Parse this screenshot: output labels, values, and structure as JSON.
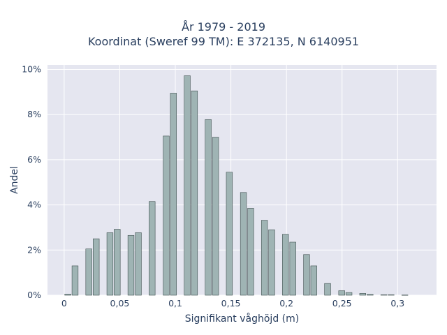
{
  "chart_data": {
    "type": "bar",
    "title_lines": [
      "År 1979 - 2019",
      "Koordinat (Sweref 99 TM): E 372135, N 6140951"
    ],
    "xlabel": "Signifikant våghöjd (m)",
    "ylabel": "Andel",
    "xlim": [
      -0.015,
      0.335
    ],
    "ylim": [
      0,
      10.2
    ],
    "x_ticks": [
      {
        "value": 0,
        "label": "0"
      },
      {
        "value": 0.05,
        "label": "0,05"
      },
      {
        "value": 0.1,
        "label": "0,1"
      },
      {
        "value": 0.15,
        "label": "0,15"
      },
      {
        "value": 0.2,
        "label": "0,2"
      },
      {
        "value": 0.25,
        "label": "0,25"
      },
      {
        "value": 0.3,
        "label": "0,3"
      }
    ],
    "y_ticks": [
      {
        "value": 0,
        "label": "0%"
      },
      {
        "value": 2,
        "label": "2%"
      },
      {
        "value": 4,
        "label": "4%"
      },
      {
        "value": 6,
        "label": "6%"
      },
      {
        "value": 8,
        "label": "8%"
      },
      {
        "value": 10,
        "label": "10%"
      }
    ],
    "bar_width": 0.0055,
    "bins": [
      {
        "x": 0.0033,
        "y": 0.05
      },
      {
        "x": 0.0098,
        "y": 1.3
      },
      {
        "x": 0.0222,
        "y": 2.05
      },
      {
        "x": 0.0288,
        "y": 2.5
      },
      {
        "x": 0.0412,
        "y": 2.77
      },
      {
        "x": 0.0477,
        "y": 2.92
      },
      {
        "x": 0.0601,
        "y": 2.65
      },
      {
        "x": 0.0667,
        "y": 2.77
      },
      {
        "x": 0.0791,
        "y": 4.15
      },
      {
        "x": 0.0918,
        "y": 7.05
      },
      {
        "x": 0.0983,
        "y": 8.95
      },
      {
        "x": 0.1107,
        "y": 9.72
      },
      {
        "x": 0.1172,
        "y": 9.05
      },
      {
        "x": 0.1296,
        "y": 7.78
      },
      {
        "x": 0.1362,
        "y": 7.0
      },
      {
        "x": 0.1486,
        "y": 5.45
      },
      {
        "x": 0.1613,
        "y": 4.55
      },
      {
        "x": 0.1678,
        "y": 3.85
      },
      {
        "x": 0.1802,
        "y": 3.32
      },
      {
        "x": 0.1867,
        "y": 2.9
      },
      {
        "x": 0.1991,
        "y": 2.7
      },
      {
        "x": 0.2057,
        "y": 2.35
      },
      {
        "x": 0.2181,
        "y": 1.8
      },
      {
        "x": 0.2246,
        "y": 1.3
      },
      {
        "x": 0.237,
        "y": 0.52
      },
      {
        "x": 0.2497,
        "y": 0.2
      },
      {
        "x": 0.2562,
        "y": 0.12
      },
      {
        "x": 0.2686,
        "y": 0.08
      },
      {
        "x": 0.2752,
        "y": 0.04
      },
      {
        "x": 0.2876,
        "y": 0.02
      },
      {
        "x": 0.2941,
        "y": 0.02
      },
      {
        "x": 0.3065,
        "y": 0.01
      }
    ],
    "colors": {
      "bar_fill": "#9fb4b4",
      "bar_stroke": "#3f4f4f",
      "plot_bg": "#e5e6f0",
      "grid": "#ffffff",
      "text": "#2a3f5f"
    },
    "grid": true,
    "legend": "none"
  }
}
